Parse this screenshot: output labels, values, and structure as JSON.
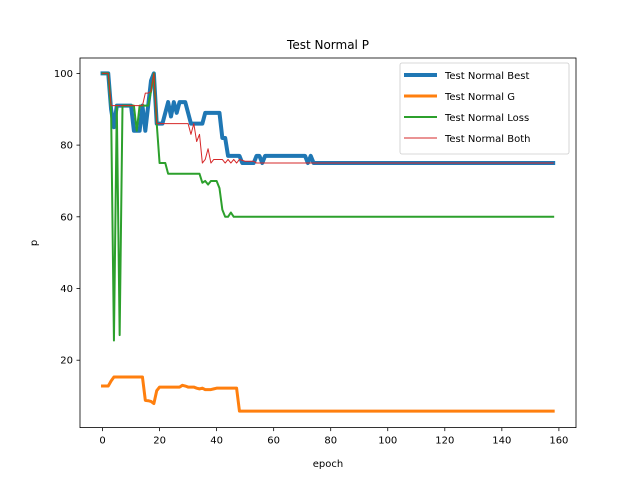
{
  "chart_data": {
    "type": "line",
    "title": "Test Normal P",
    "xlabel": "epoch",
    "ylabel": "p",
    "xlim": [
      -7.9,
      166
    ],
    "ylim": [
      1.2,
      104.3
    ],
    "xticks": [
      0,
      20,
      40,
      60,
      80,
      100,
      120,
      140,
      160
    ],
    "yticks": [
      20,
      40,
      60,
      80,
      100
    ],
    "grid": false,
    "legend_position": "top-right",
    "series": [
      {
        "name": "Test Normal Best",
        "color": "#1f77b4",
        "width": 4,
        "points": [
          [
            0,
            100
          ],
          [
            2,
            100
          ],
          [
            3,
            90
          ],
          [
            4,
            85
          ],
          [
            5,
            91
          ],
          [
            10,
            91
          ],
          [
            11,
            84
          ],
          [
            13,
            84
          ],
          [
            14,
            91
          ],
          [
            15,
            84
          ],
          [
            17,
            98
          ],
          [
            18,
            100
          ],
          [
            19,
            86
          ],
          [
            20,
            86
          ],
          [
            21,
            86
          ],
          [
            22,
            89
          ],
          [
            23,
            92
          ],
          [
            24,
            88
          ],
          [
            25,
            92
          ],
          [
            26,
            89
          ],
          [
            27,
            92
          ],
          [
            28,
            92
          ],
          [
            29,
            92
          ],
          [
            30,
            89
          ],
          [
            31,
            86
          ],
          [
            34,
            86
          ],
          [
            35,
            86
          ],
          [
            36,
            89
          ],
          [
            41,
            89
          ],
          [
            42,
            82
          ],
          [
            43,
            82
          ],
          [
            44,
            77
          ],
          [
            45,
            77
          ],
          [
            48,
            77
          ],
          [
            49,
            75
          ],
          [
            53,
            75
          ],
          [
            54,
            77
          ],
          [
            55,
            77
          ],
          [
            56,
            75
          ],
          [
            57,
            77
          ],
          [
            58,
            77
          ],
          [
            71,
            77
          ],
          [
            72,
            75
          ],
          [
            73,
            77
          ],
          [
            74,
            75
          ],
          [
            158,
            75
          ]
        ]
      },
      {
        "name": "Test Normal G",
        "color": "#ff7f0e",
        "width": 3,
        "points": [
          [
            0,
            12.8
          ],
          [
            2,
            12.8
          ],
          [
            3,
            14.2
          ],
          [
            4,
            15.3
          ],
          [
            14,
            15.3
          ],
          [
            15,
            8.8
          ],
          [
            16,
            8.7
          ],
          [
            17,
            8.5
          ],
          [
            18,
            7.9
          ],
          [
            19,
            11.5
          ],
          [
            20,
            12.5
          ],
          [
            27,
            12.5
          ],
          [
            28,
            13
          ],
          [
            29,
            12.8
          ],
          [
            30,
            12.5
          ],
          [
            32,
            12.5
          ],
          [
            33,
            12.2
          ],
          [
            34,
            12
          ],
          [
            35,
            12.2
          ],
          [
            36,
            11.8
          ],
          [
            38,
            11.8
          ],
          [
            39,
            12
          ],
          [
            40,
            12.2
          ],
          [
            47,
            12.2
          ],
          [
            48,
            5.8
          ],
          [
            158,
            5.8
          ]
        ]
      },
      {
        "name": "Test Normal Loss",
        "color": "#2ca02c",
        "width": 2,
        "points": [
          [
            0,
            100
          ],
          [
            2,
            100
          ],
          [
            3,
            90
          ],
          [
            4,
            25.5
          ],
          [
            5,
            91
          ],
          [
            6,
            27
          ],
          [
            7,
            91
          ],
          [
            11,
            91
          ],
          [
            12,
            84
          ],
          [
            13,
            91
          ],
          [
            16,
            91
          ],
          [
            17,
            95
          ],
          [
            18,
            100
          ],
          [
            19,
            86
          ],
          [
            20,
            75
          ],
          [
            22,
            75
          ],
          [
            23,
            72
          ],
          [
            34,
            72
          ],
          [
            35,
            69.5
          ],
          [
            36,
            70
          ],
          [
            37,
            69
          ],
          [
            38,
            70
          ],
          [
            40,
            70
          ],
          [
            41,
            68
          ],
          [
            42,
            62
          ],
          [
            43,
            60
          ],
          [
            44,
            60
          ],
          [
            45,
            61.2
          ],
          [
            46,
            60
          ],
          [
            158,
            60
          ]
        ]
      },
      {
        "name": "Test Normal Both",
        "color": "#d62728",
        "width": 1,
        "points": [
          [
            0,
            100
          ],
          [
            2,
            100
          ],
          [
            3,
            91
          ],
          [
            12,
            91
          ],
          [
            13,
            91
          ],
          [
            14,
            91
          ],
          [
            15,
            94.5
          ],
          [
            16,
            94.5
          ],
          [
            17,
            95
          ],
          [
            18,
            100
          ],
          [
            19,
            86
          ],
          [
            21,
            86
          ],
          [
            22,
            86
          ],
          [
            30,
            86
          ],
          [
            31,
            83
          ],
          [
            32,
            86
          ],
          [
            33,
            81
          ],
          [
            34,
            83
          ],
          [
            35,
            75
          ],
          [
            36,
            76
          ],
          [
            37,
            79
          ],
          [
            38,
            75
          ],
          [
            39,
            76
          ],
          [
            42,
            76
          ],
          [
            43,
            75
          ],
          [
            44,
            76
          ],
          [
            45,
            75
          ],
          [
            46,
            76
          ],
          [
            47,
            75
          ],
          [
            48,
            76
          ],
          [
            50,
            75.5
          ],
          [
            53,
            75.5
          ],
          [
            54,
            75
          ],
          [
            158,
            75
          ]
        ]
      }
    ]
  }
}
